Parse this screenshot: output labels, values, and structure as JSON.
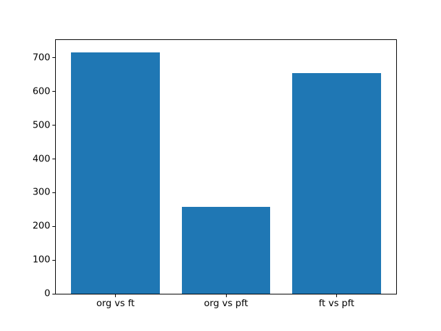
{
  "figure": {
    "background": "#ffffff"
  },
  "chart_data": {
    "type": "bar",
    "title": "",
    "xlabel": "",
    "ylabel": "",
    "categories": [
      "org vs ft",
      "org vs pft",
      "ft vs pft"
    ],
    "values": [
      717,
      257,
      655
    ],
    "yticks": [
      0,
      100,
      200,
      300,
      400,
      500,
      600,
      700
    ],
    "ylim": [
      0,
      753
    ],
    "xlim": [
      -0.54,
      2.54
    ],
    "bar_width": 0.8,
    "bar_color": "#1f77b4",
    "axis_color": "#000000",
    "tick_label_color": "#000000",
    "grid": false,
    "legend_position": "none"
  }
}
